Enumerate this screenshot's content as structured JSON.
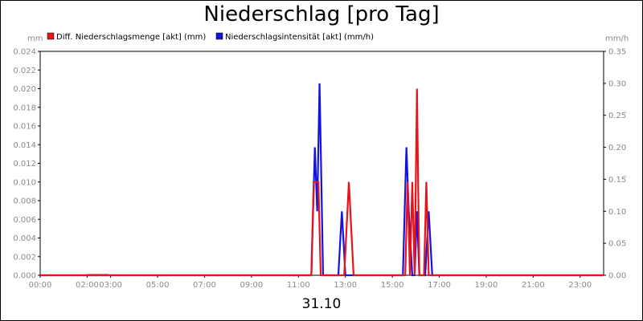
{
  "chart_data": {
    "type": "line",
    "title": "Niederschlag [pro Tag]",
    "date_label": "31.10",
    "left_unit": "mm",
    "right_unit": "mm/h",
    "x_ticks": [
      "00:00",
      "02:00",
      "03:00",
      "05:00",
      "07:00",
      "09:00",
      "11:00",
      "13:00",
      "15:00",
      "17:00",
      "19:00",
      "21:00",
      "23:00"
    ],
    "x_tick_hours": [
      0,
      2,
      3,
      5,
      7,
      9,
      11,
      13,
      15,
      17,
      19,
      21,
      23
    ],
    "x_range_hours": [
      0,
      24
    ],
    "y_left": {
      "range": [
        0,
        0.024
      ],
      "ticks": [
        "0.000",
        "0.002",
        "0.004",
        "0.006",
        "0.008",
        "0.010",
        "0.012",
        "0.014",
        "0.016",
        "0.018",
        "0.020",
        "0.022",
        "0.024"
      ]
    },
    "y_right": {
      "range": [
        0,
        0.35
      ],
      "ticks": [
        "0.00",
        "0.05",
        "0.10",
        "0.15",
        "0.20",
        "0.25",
        "0.30",
        "0.35"
      ]
    },
    "grid": false,
    "legend_position": "top",
    "series": [
      {
        "name": "Diff. Niederschlagsmenge [akt] (mm)",
        "axis": "left",
        "color": "#e8141c",
        "points": [
          [
            0,
            0
          ],
          [
            11.55,
            0
          ],
          [
            11.65,
            0.01
          ],
          [
            11.85,
            0.01
          ],
          [
            11.95,
            0
          ],
          [
            12.95,
            0
          ],
          [
            13.15,
            0.01
          ],
          [
            13.35,
            0
          ],
          [
            15.55,
            0
          ],
          [
            15.65,
            0.01
          ],
          [
            15.75,
            0
          ],
          [
            15.85,
            0.01
          ],
          [
            15.95,
            0
          ],
          [
            16.05,
            0.02
          ],
          [
            16.15,
            0
          ],
          [
            16.35,
            0
          ],
          [
            16.45,
            0.01
          ],
          [
            16.55,
            0
          ],
          [
            24,
            0
          ]
        ]
      },
      {
        "name": "Niederschlagsintensität [akt] (mm/h)",
        "axis": "right",
        "color": "#1414e0",
        "points": [
          [
            0,
            0
          ],
          [
            11.55,
            0
          ],
          [
            11.7,
            0.2
          ],
          [
            11.8,
            0.1
          ],
          [
            11.9,
            0.3
          ],
          [
            12.05,
            0
          ],
          [
            12.7,
            0
          ],
          [
            12.85,
            0.1
          ],
          [
            13.0,
            0
          ],
          [
            15.45,
            0
          ],
          [
            15.6,
            0.2
          ],
          [
            15.7,
            0.1
          ],
          [
            15.85,
            0
          ],
          [
            15.95,
            0
          ],
          [
            16.05,
            0.1
          ],
          [
            16.15,
            0
          ],
          [
            16.4,
            0
          ],
          [
            16.55,
            0.1
          ],
          [
            16.7,
            0
          ],
          [
            24,
            0
          ]
        ]
      }
    ],
    "flat_marks": [
      {
        "from_hour": 2.0,
        "to_hour": 2.9,
        "color": "#b01010"
      }
    ]
  }
}
